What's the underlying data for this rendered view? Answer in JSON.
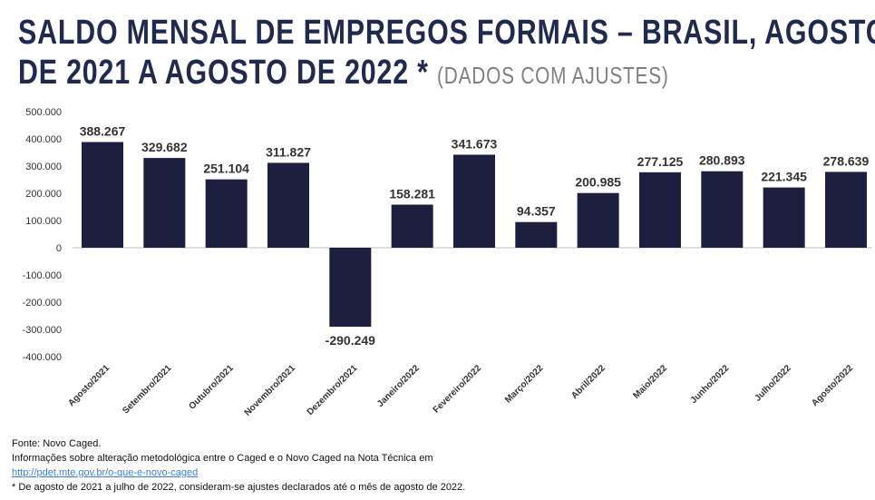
{
  "title": {
    "line1": "SALDO MENSAL DE EMPREGOS FORMAIS – BRASIL, AGOSTO",
    "line2": "DE 2021 A AGOSTO DE 2022",
    "asterisk": "*",
    "subtitle": "(DADOS COM AJUSTES)"
  },
  "chart_data": {
    "type": "bar",
    "categories": [
      "Agosto/2021",
      "Setembro/2021",
      "Outubro/2021",
      "Novembro/2021",
      "Dezembro/2021",
      "Janeiro/2022",
      "Fevereiro/2022",
      "Março/2022",
      "Abril/2022",
      "Maio/2022",
      "Junho/2022",
      "Julho/2022",
      "Agosto/2022"
    ],
    "values": [
      388267,
      329682,
      251104,
      311827,
      -290249,
      158281,
      341673,
      94357,
      200985,
      277125,
      280893,
      221345,
      278639
    ],
    "data_labels": [
      "388.267",
      "329.682",
      "251.104",
      "311.827",
      "-290.249",
      "158.281",
      "341.673",
      "94.357",
      "200.985",
      "277.125",
      "280.893",
      "221.345",
      "278.639"
    ],
    "ylim": [
      -400000,
      500000
    ],
    "yticks": [
      500000,
      400000,
      300000,
      200000,
      100000,
      0,
      -100000,
      -200000,
      -300000,
      -400000
    ],
    "ytick_labels": [
      "500.000",
      "400.000",
      "300.000",
      "200.000",
      "100.000",
      "0",
      "-100.000",
      "-200.000",
      "-300.000",
      "-400.000"
    ],
    "grid": false,
    "bar_color": "#1c1f40"
  },
  "notes": {
    "source": "Fonte: Novo Caged.",
    "info": "Informações sobre alteração metodológica entre o Caged e o Novo Caged na Nota Técnica em",
    "link": "http://pdet.mte.gov.br/o-que-e-novo-caged",
    "footnote": "* De agosto de 2021 a julho de 2022, consideram-se ajustes declarados até o mês de agosto de 2022."
  }
}
